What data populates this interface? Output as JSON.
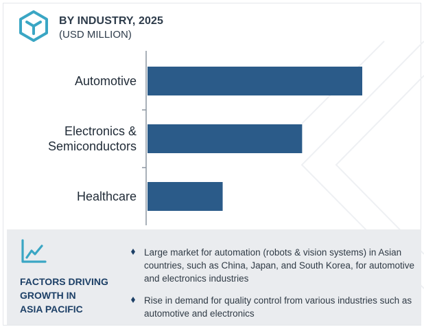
{
  "header": {
    "title": "BY INDUSTRY, 2025",
    "subtitle": "(USD MILLION)",
    "logo_icon": "hexagon-cube-logo-icon",
    "accent_color": "#3aa6c4"
  },
  "chart_data": {
    "type": "bar",
    "orientation": "horizontal",
    "categories": [
      "Automotive",
      "Electronics & Semiconductors",
      "Healthcare"
    ],
    "category_lines": [
      [
        "Automotive"
      ],
      [
        "Electronics &",
        "Semiconductors"
      ],
      [
        "Healthcare"
      ]
    ],
    "values": [
      100,
      72,
      35
    ],
    "xlim": [
      0,
      100
    ],
    "value_axis_labels": false,
    "grid": false,
    "bar_color": "#2b5b89"
  },
  "factors": {
    "icon": "trend-chart-icon",
    "title_lines": [
      "FACTORS DRIVING",
      "GROWTH IN",
      "ASIA PACIFIC"
    ],
    "bullets": [
      "Large market for automation (robots & vision systems) in Asian countries, such as China, Japan, and South Korea, for automotive and electronics industries",
      "Rise in demand for quality control from various industries such as automotive and electronics"
    ],
    "bullet_color": "#1c3f66"
  }
}
